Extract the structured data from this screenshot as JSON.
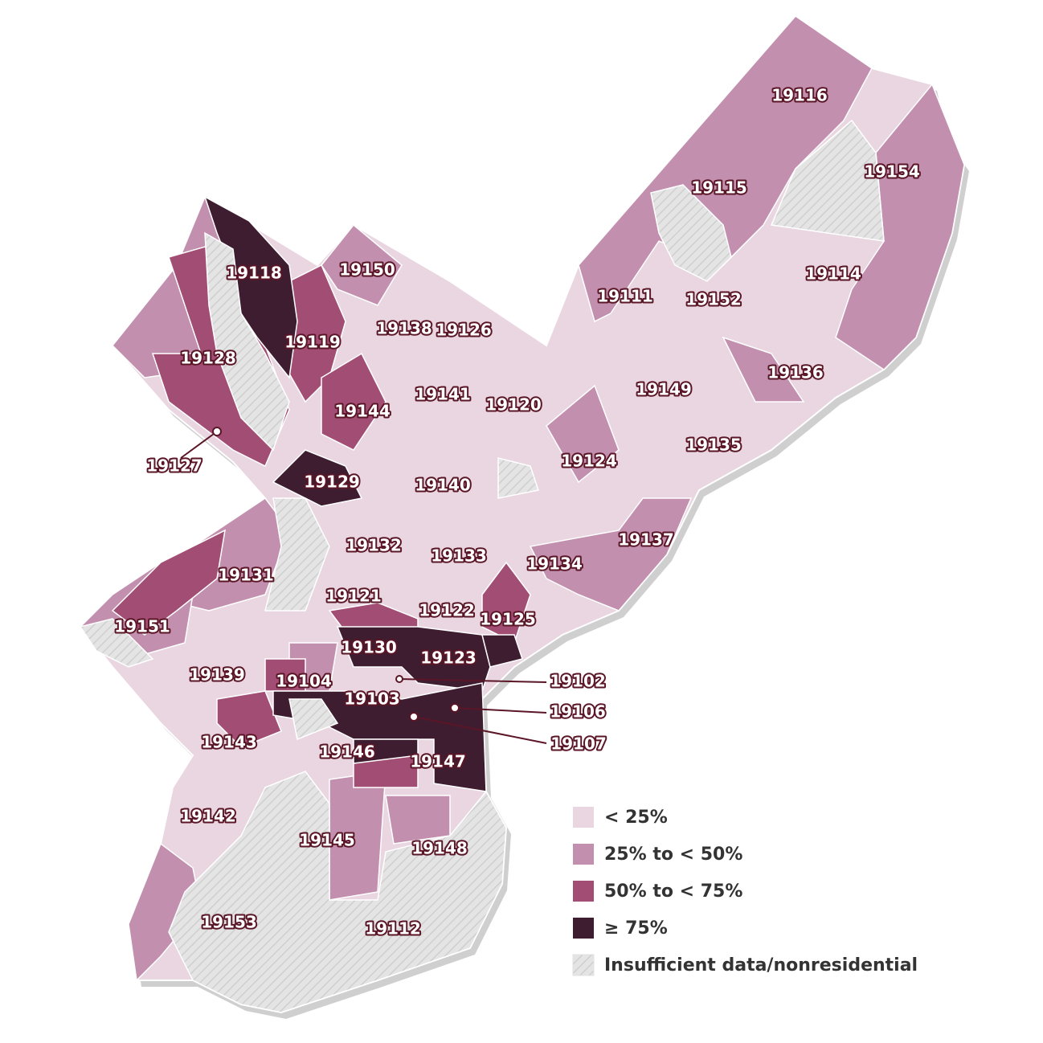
{
  "zip_labels": [
    "19116",
    "19154",
    "19115",
    "19114",
    "19111",
    "19152",
    "19136",
    "19149",
    "19135",
    "19124",
    "19137",
    "19134",
    "19150",
    "19118",
    "19138",
    "19126",
    "19119",
    "19128",
    "19141",
    "19120",
    "19144",
    "19127",
    "19129",
    "19140",
    "19132",
    "19133",
    "19131",
    "19121",
    "19122",
    "19125",
    "19151",
    "19130",
    "19123",
    "19139",
    "19104",
    "19102",
    "19103",
    "19106",
    "19107",
    "19143",
    "19146",
    "19147",
    "19142",
    "19145",
    "19148",
    "19153",
    "19112"
  ],
  "legend": [
    {
      "label": "< 25%",
      "color": "#e9d6e0"
    },
    {
      "label": "25% to < 50%",
      "color": "#c28fae"
    },
    {
      "label": "50% to < 75%",
      "color": "#a24d74"
    },
    {
      "label": "≥ 75%",
      "color": "#3f1d31"
    },
    {
      "label": "Insufficient data/nonresidential",
      "color": "#e2e2e2"
    }
  ]
}
